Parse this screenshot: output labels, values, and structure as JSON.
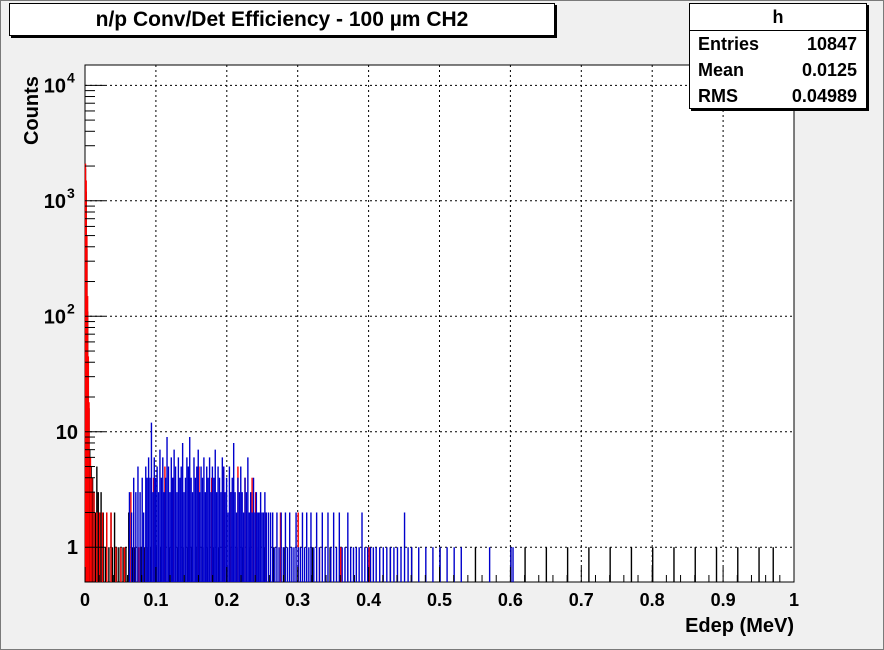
{
  "chart_data": {
    "type": "histogram",
    "title": "n/p Conv/Det Efficiency - 100 µm CH2",
    "xlabel": "Edep (MeV)",
    "ylabel": "Counts",
    "xlim": [
      0,
      1
    ],
    "ylim": [
      0.5,
      15000
    ],
    "yscale": "log",
    "grid": true,
    "x_ticks": [
      "0",
      "0.1",
      "0.2",
      "0.3",
      "0.4",
      "0.5",
      "0.6",
      "0.7",
      "0.8",
      "0.9",
      "1"
    ],
    "y_ticks": [
      {
        "value": 1,
        "base": "1",
        "exp": ""
      },
      {
        "value": 10,
        "base": "10",
        "exp": ""
      },
      {
        "value": 100,
        "base": "10",
        "exp": "2"
      },
      {
        "value": 1000,
        "base": "10",
        "exp": "3"
      },
      {
        "value": 10000,
        "base": "10",
        "exp": "4"
      }
    ],
    "stats": {
      "name": "h",
      "rows": [
        {
          "label": "Entries",
          "value": "10847"
        },
        {
          "label": "Mean",
          "value": "0.0125"
        },
        {
          "label": "RMS",
          "value": "0.04989"
        }
      ]
    },
    "series": [
      {
        "color": "#000000",
        "points": [
          [
            0.0,
            1900
          ],
          [
            0.001,
            1200
          ],
          [
            0.002,
            380
          ],
          [
            0.003,
            110
          ],
          [
            0.004,
            40
          ],
          [
            0.005,
            16
          ],
          [
            0.006,
            7
          ],
          [
            0.008,
            5
          ],
          [
            0.01,
            4
          ],
          [
            0.012,
            3
          ],
          [
            0.014,
            2
          ],
          [
            0.016,
            5
          ],
          [
            0.018,
            3
          ],
          [
            0.02,
            2
          ],
          [
            0.022,
            3
          ],
          [
            0.025,
            2
          ],
          [
            0.028,
            1
          ],
          [
            0.03,
            2
          ],
          [
            0.033,
            1
          ],
          [
            0.036,
            2
          ],
          [
            0.038,
            1
          ],
          [
            0.041,
            2
          ],
          [
            0.044,
            1
          ],
          [
            0.047,
            1
          ],
          [
            0.05,
            1
          ],
          [
            0.053,
            1
          ],
          [
            0.057,
            1
          ],
          [
            0.061,
            2
          ],
          [
            0.066,
            1
          ],
          [
            0.07,
            1
          ],
          [
            0.074,
            1
          ],
          [
            0.078,
            1
          ],
          [
            0.083,
            1
          ],
          [
            0.087,
            1
          ],
          [
            0.092,
            1
          ],
          [
            0.1,
            1
          ],
          [
            0.106,
            1
          ],
          [
            0.112,
            1
          ],
          [
            0.118,
            1
          ],
          [
            0.124,
            1
          ],
          [
            0.13,
            1
          ],
          [
            0.137,
            1
          ],
          [
            0.144,
            1
          ],
          [
            0.15,
            1
          ],
          [
            0.157,
            1
          ],
          [
            0.165,
            1
          ],
          [
            0.172,
            1
          ],
          [
            0.18,
            1
          ],
          [
            0.188,
            1
          ],
          [
            0.196,
            1
          ],
          [
            0.205,
            1
          ],
          [
            0.213,
            1
          ],
          [
            0.222,
            1
          ],
          [
            0.232,
            1
          ],
          [
            0.241,
            1
          ],
          [
            0.252,
            1
          ],
          [
            0.265,
            1
          ],
          [
            0.28,
            1
          ],
          [
            0.3,
            1
          ],
          [
            0.32,
            1
          ],
          [
            0.345,
            1
          ],
          [
            0.37,
            1
          ],
          [
            0.4,
            1
          ],
          [
            0.43,
            1
          ],
          [
            0.46,
            1
          ],
          [
            0.5,
            1
          ],
          [
            0.55,
            1
          ],
          [
            0.6,
            1
          ],
          [
            0.62,
            1
          ],
          [
            0.65,
            1
          ],
          [
            0.68,
            1
          ],
          [
            0.71,
            1
          ],
          [
            0.74,
            1
          ],
          [
            0.77,
            1
          ],
          [
            0.8,
            1
          ],
          [
            0.83,
            1
          ],
          [
            0.86,
            1
          ],
          [
            0.89,
            1
          ],
          [
            0.92,
            1
          ],
          [
            0.95,
            1
          ],
          [
            0.97,
            1
          ]
        ]
      },
      {
        "color": "#ff0000",
        "points": [
          [
            0.0,
            2100
          ],
          [
            0.001,
            1500
          ],
          [
            0.002,
            500
          ],
          [
            0.003,
            150
          ],
          [
            0.004,
            45
          ],
          [
            0.005,
            18
          ],
          [
            0.007,
            6
          ],
          [
            0.009,
            4
          ],
          [
            0.012,
            3
          ],
          [
            0.016,
            2
          ],
          [
            0.02,
            2
          ],
          [
            0.024,
            2
          ],
          [
            0.03,
            2
          ],
          [
            0.036,
            2
          ],
          [
            0.043,
            1
          ],
          [
            0.05,
            1
          ],
          [
            0.055,
            1
          ],
          [
            0.064,
            3
          ],
          [
            0.068,
            2
          ],
          [
            0.075,
            1
          ],
          [
            0.082,
            1
          ],
          [
            0.096,
            4
          ],
          [
            0.112,
            5
          ],
          [
            0.124,
            4
          ],
          [
            0.146,
            4
          ],
          [
            0.16,
            5
          ],
          [
            0.178,
            4
          ],
          [
            0.195,
            5
          ],
          [
            0.205,
            3
          ],
          [
            0.215,
            5
          ],
          [
            0.225,
            4
          ],
          [
            0.235,
            4
          ],
          [
            0.24,
            3
          ],
          [
            0.255,
            2
          ],
          [
            0.275,
            2
          ],
          [
            0.3,
            2
          ],
          [
            0.33,
            1
          ],
          [
            0.36,
            1
          ],
          [
            0.4,
            1
          ]
        ]
      },
      {
        "color": "#0000cc",
        "points": [
          [
            0.062,
            3
          ],
          [
            0.065,
            2
          ],
          [
            0.068,
            4
          ],
          [
            0.071,
            3
          ],
          [
            0.074,
            5
          ],
          [
            0.077,
            3
          ],
          [
            0.08,
            4
          ],
          [
            0.082,
            2
          ],
          [
            0.085,
            5
          ],
          [
            0.087,
            4
          ],
          [
            0.089,
            6
          ],
          [
            0.091,
            4
          ],
          [
            0.093,
            12
          ],
          [
            0.095,
            3
          ],
          [
            0.097,
            6
          ],
          [
            0.099,
            4
          ],
          [
            0.101,
            5
          ],
          [
            0.103,
            3
          ],
          [
            0.105,
            7
          ],
          [
            0.107,
            4
          ],
          [
            0.109,
            6
          ],
          [
            0.111,
            3
          ],
          [
            0.113,
            4
          ],
          [
            0.115,
            9
          ],
          [
            0.117,
            5
          ],
          [
            0.119,
            3
          ],
          [
            0.121,
            6
          ],
          [
            0.123,
            4
          ],
          [
            0.125,
            7
          ],
          [
            0.127,
            5
          ],
          [
            0.129,
            3
          ],
          [
            0.131,
            6
          ],
          [
            0.133,
            4
          ],
          [
            0.135,
            5
          ],
          [
            0.137,
            8
          ],
          [
            0.139,
            3
          ],
          [
            0.141,
            4
          ],
          [
            0.143,
            6
          ],
          [
            0.145,
            5
          ],
          [
            0.147,
            9
          ],
          [
            0.149,
            4
          ],
          [
            0.151,
            3
          ],
          [
            0.153,
            6
          ],
          [
            0.155,
            4
          ],
          [
            0.157,
            5
          ],
          [
            0.159,
            7
          ],
          [
            0.161,
            3
          ],
          [
            0.163,
            5
          ],
          [
            0.165,
            4
          ],
          [
            0.167,
            6
          ],
          [
            0.169,
            3
          ],
          [
            0.171,
            5
          ],
          [
            0.173,
            4
          ],
          [
            0.175,
            6
          ],
          [
            0.177,
            3
          ],
          [
            0.179,
            5
          ],
          [
            0.181,
            4
          ],
          [
            0.183,
            7
          ],
          [
            0.185,
            3
          ],
          [
            0.187,
            5
          ],
          [
            0.189,
            4
          ],
          [
            0.191,
            3
          ],
          [
            0.193,
            6
          ],
          [
            0.195,
            5
          ],
          [
            0.197,
            3
          ],
          [
            0.199,
            4
          ],
          [
            0.201,
            2
          ],
          [
            0.203,
            5
          ],
          [
            0.205,
            3
          ],
          [
            0.207,
            4
          ],
          [
            0.209,
            8
          ],
          [
            0.211,
            3
          ],
          [
            0.213,
            2
          ],
          [
            0.215,
            4
          ],
          [
            0.217,
            3
          ],
          [
            0.219,
            5
          ],
          [
            0.221,
            3
          ],
          [
            0.223,
            2
          ],
          [
            0.225,
            4
          ],
          [
            0.227,
            3
          ],
          [
            0.229,
            6
          ],
          [
            0.231,
            2
          ],
          [
            0.233,
            3
          ],
          [
            0.235,
            2
          ],
          [
            0.237,
            4
          ],
          [
            0.239,
            2
          ],
          [
            0.241,
            3
          ],
          [
            0.243,
            2
          ],
          [
            0.245,
            2
          ],
          [
            0.247,
            3
          ],
          [
            0.249,
            2
          ],
          [
            0.251,
            2
          ],
          [
            0.253,
            3
          ],
          [
            0.255,
            2
          ],
          [
            0.258,
            2
          ],
          [
            0.261,
            2
          ],
          [
            0.264,
            2
          ],
          [
            0.267,
            1
          ],
          [
            0.27,
            2
          ],
          [
            0.273,
            1
          ],
          [
            0.276,
            2
          ],
          [
            0.279,
            1
          ],
          [
            0.282,
            2
          ],
          [
            0.285,
            1
          ],
          [
            0.288,
            2
          ],
          [
            0.291,
            1
          ],
          [
            0.294,
            1
          ],
          [
            0.297,
            2
          ],
          [
            0.3,
            1
          ],
          [
            0.303,
            1
          ],
          [
            0.306,
            2
          ],
          [
            0.309,
            1
          ],
          [
            0.312,
            2
          ],
          [
            0.315,
            1
          ],
          [
            0.318,
            2
          ],
          [
            0.322,
            1
          ],
          [
            0.326,
            2
          ],
          [
            0.33,
            1
          ],
          [
            0.334,
            2
          ],
          [
            0.338,
            1
          ],
          [
            0.342,
            2
          ],
          [
            0.346,
            1
          ],
          [
            0.35,
            2
          ],
          [
            0.354,
            1
          ],
          [
            0.358,
            2
          ],
          [
            0.362,
            1
          ],
          [
            0.366,
            1
          ],
          [
            0.37,
            2
          ],
          [
            0.374,
            1
          ],
          [
            0.378,
            1
          ],
          [
            0.382,
            1
          ],
          [
            0.386,
            1
          ],
          [
            0.39,
            2
          ],
          [
            0.394,
            1
          ],
          [
            0.398,
            1
          ],
          [
            0.402,
            1
          ],
          [
            0.406,
            1
          ],
          [
            0.41,
            1
          ],
          [
            0.415,
            1
          ],
          [
            0.42,
            1
          ],
          [
            0.425,
            1
          ],
          [
            0.43,
            1
          ],
          [
            0.435,
            1
          ],
          [
            0.44,
            1
          ],
          [
            0.445,
            1
          ],
          [
            0.45,
            2
          ],
          [
            0.455,
            1
          ],
          [
            0.46,
            1
          ],
          [
            0.47,
            1
          ],
          [
            0.48,
            1
          ],
          [
            0.49,
            1
          ],
          [
            0.5,
            1
          ],
          [
            0.51,
            1
          ],
          [
            0.52,
            1
          ],
          [
            0.53,
            1
          ],
          [
            0.57,
            1
          ],
          [
            0.6,
            1
          ],
          [
            0.603,
            1
          ]
        ]
      }
    ]
  }
}
